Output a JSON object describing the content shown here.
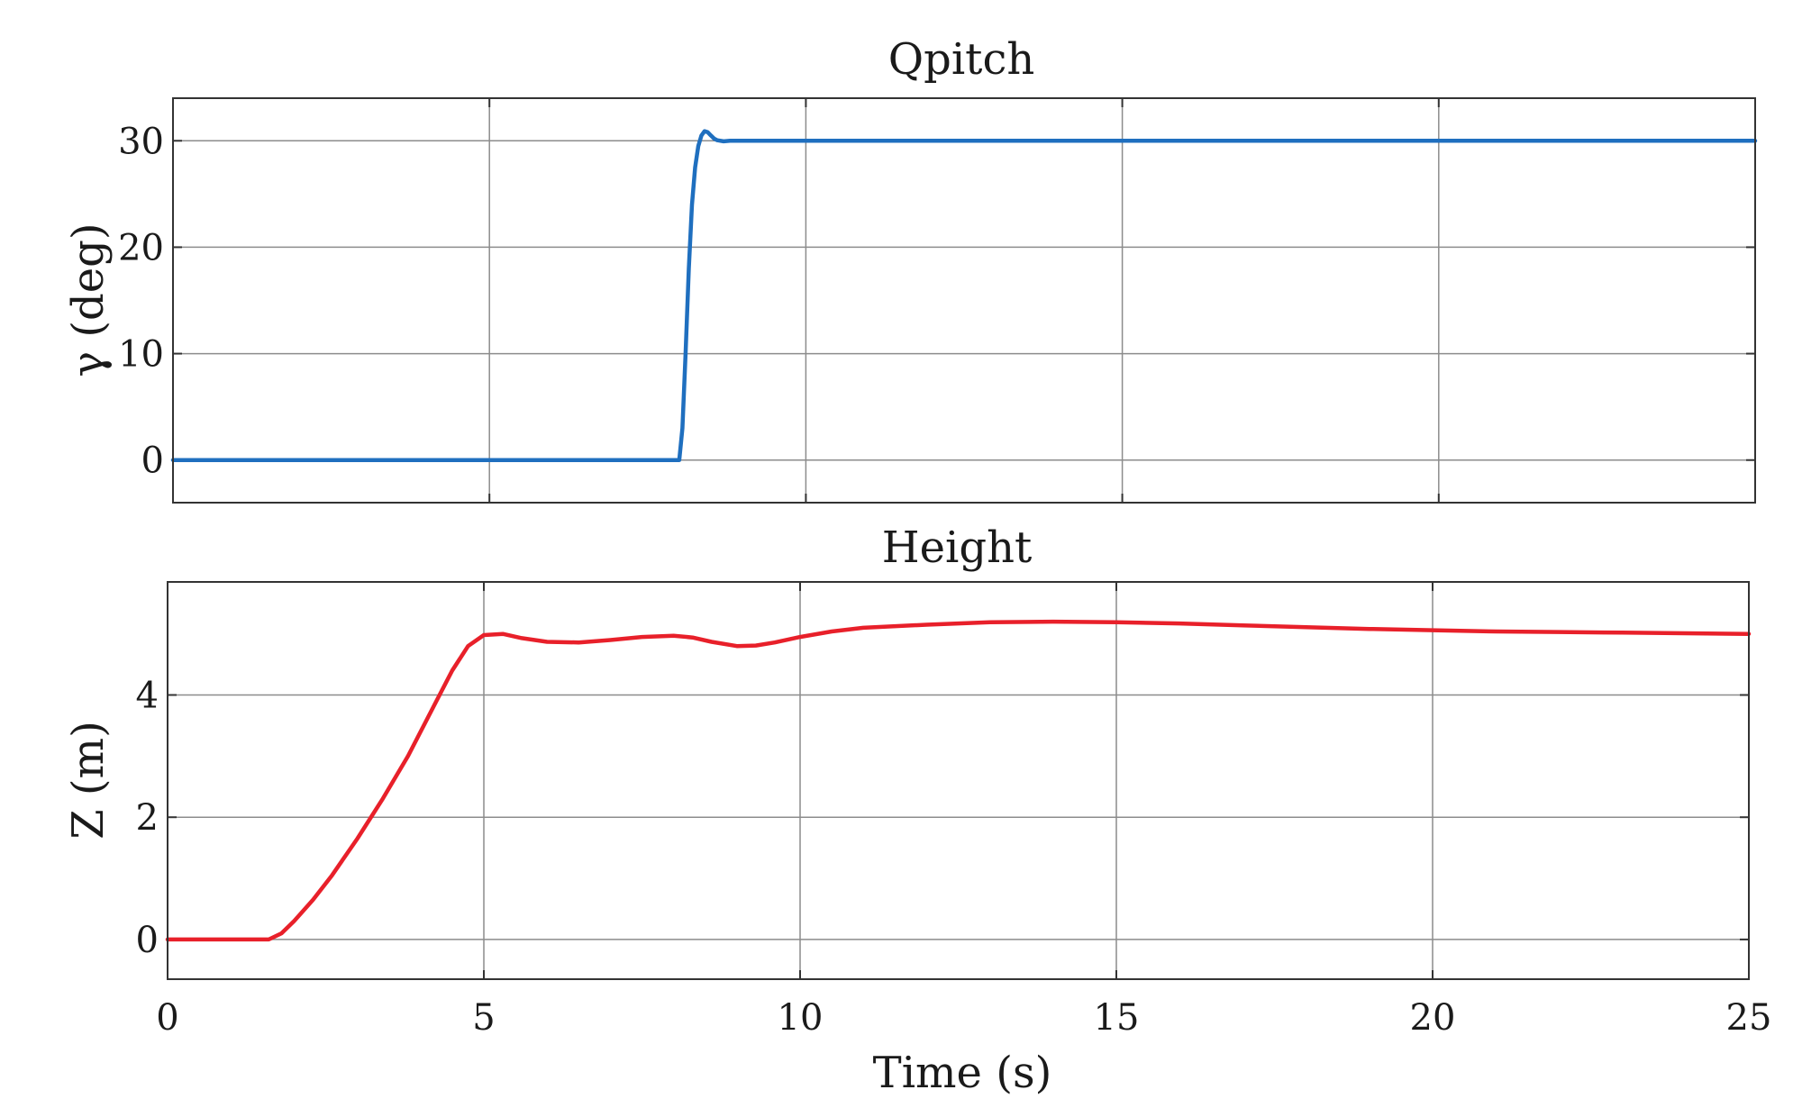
{
  "chart_data": [
    {
      "type": "line",
      "title": "Qpitch",
      "xlabel": "",
      "ylabel": "γ (deg)",
      "xlim": [
        0,
        25
      ],
      "ylim": [
        -4,
        34
      ],
      "grid": true,
      "x_ticks": [
        0,
        5,
        10,
        15,
        20,
        25
      ],
      "y_ticks": [
        0,
        10,
        20,
        30
      ],
      "y_tick_labels": [
        "0",
        "10",
        "20",
        "30"
      ],
      "series": [
        {
          "color": "#1f6fbf",
          "x": [
            0,
            8.0,
            8.05,
            8.1,
            8.15,
            8.2,
            8.25,
            8.3,
            8.35,
            8.4,
            8.45,
            8.5,
            8.55,
            8.6,
            8.7,
            8.8,
            9.0,
            10,
            15,
            20,
            25
          ],
          "y": [
            0,
            0,
            3,
            10,
            18,
            24,
            27.5,
            29.5,
            30.5,
            30.9,
            30.8,
            30.5,
            30.2,
            30.05,
            29.95,
            30,
            30,
            30,
            30,
            30,
            30
          ]
        }
      ]
    },
    {
      "type": "line",
      "title": "Height",
      "xlabel": "Time (s)",
      "ylabel": "Z (m)",
      "xlim": [
        0,
        25
      ],
      "ylim": [
        -0.65,
        5.85
      ],
      "grid": true,
      "x_ticks": [
        0,
        5,
        10,
        15,
        20,
        25
      ],
      "x_tick_labels": [
        "0",
        "5",
        "10",
        "15",
        "20",
        "25"
      ],
      "y_ticks": [
        0,
        2,
        4
      ],
      "y_tick_labels": [
        "0",
        "2",
        "4"
      ],
      "series": [
        {
          "color": "#e8202a",
          "x": [
            0,
            1.6,
            1.8,
            2.0,
            2.3,
            2.6,
            3.0,
            3.4,
            3.8,
            4.2,
            4.5,
            4.75,
            5.0,
            5.3,
            5.6,
            6.0,
            6.5,
            7.0,
            7.5,
            8.0,
            8.3,
            8.6,
            9.0,
            9.3,
            9.6,
            10.0,
            10.5,
            11.0,
            12.0,
            13.0,
            14.0,
            15.0,
            16.0,
            17.0,
            18.0,
            19.0,
            20.0,
            21.0,
            22.0,
            23.0,
            24.0,
            25.0
          ],
          "y": [
            0,
            0,
            0.1,
            0.3,
            0.65,
            1.05,
            1.65,
            2.3,
            3.0,
            3.8,
            4.4,
            4.8,
            4.98,
            5.0,
            4.93,
            4.87,
            4.86,
            4.9,
            4.95,
            4.97,
            4.94,
            4.87,
            4.8,
            4.81,
            4.86,
            4.95,
            5.04,
            5.1,
            5.15,
            5.19,
            5.2,
            5.19,
            5.17,
            5.14,
            5.11,
            5.08,
            5.06,
            5.04,
            5.03,
            5.02,
            5.01,
            5.0
          ]
        }
      ]
    }
  ]
}
